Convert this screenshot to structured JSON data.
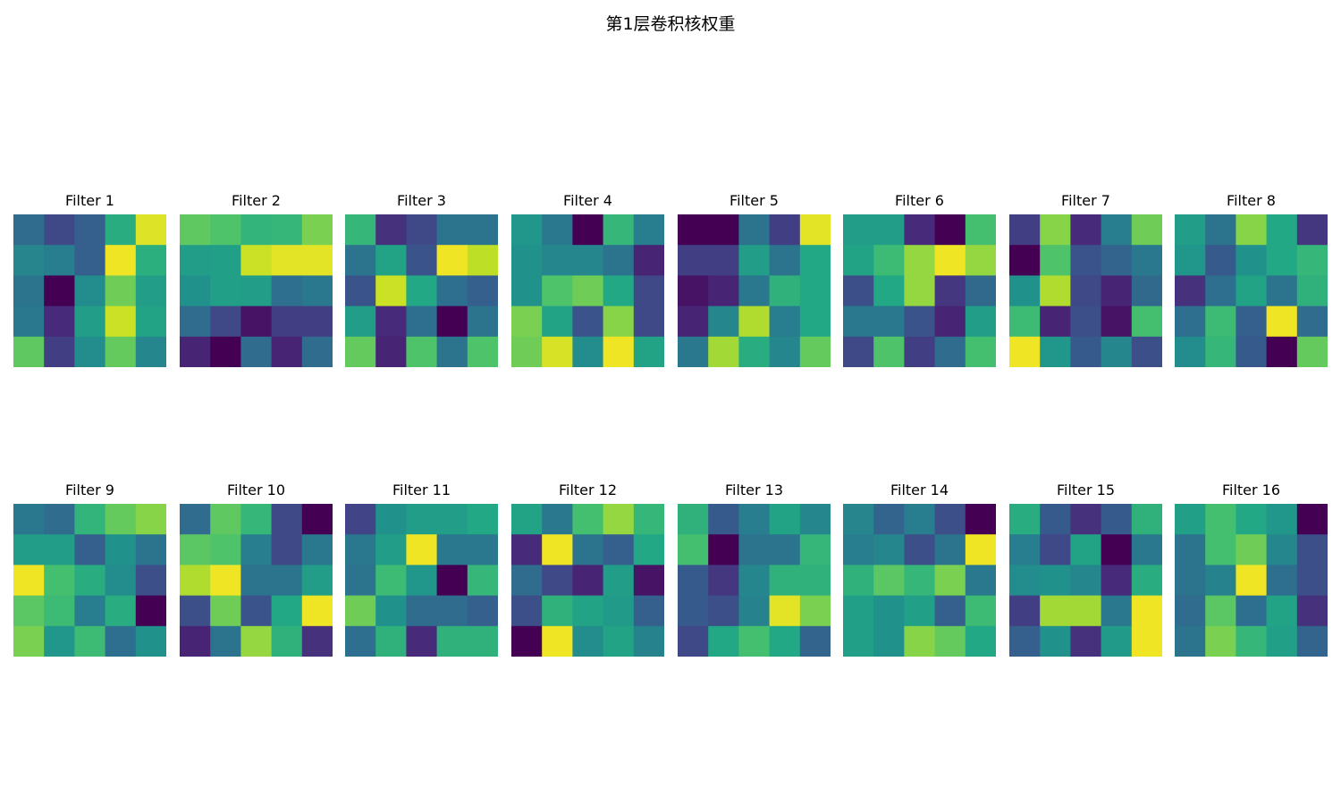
{
  "title": "第1层卷积核权重",
  "chart_data": {
    "type": "heatmap",
    "title": "第1层卷积核权重",
    "colormap": "viridis",
    "kernel_size": [
      5,
      5
    ],
    "axes_visible": false,
    "rows": 2,
    "cols": 8,
    "filters": [
      {
        "label": "Filter 1",
        "values": [
          [
            0.35,
            0.22,
            0.3,
            0.62,
            0.95
          ],
          [
            0.45,
            0.42,
            0.3,
            0.98,
            0.63
          ],
          [
            0.38,
            0.0,
            0.48,
            0.78,
            0.55
          ],
          [
            0.4,
            0.12,
            0.55,
            0.92,
            0.58
          ],
          [
            0.75,
            0.18,
            0.48,
            0.76,
            0.46
          ]
        ]
      },
      {
        "label": "Filter 2",
        "values": [
          [
            0.75,
            0.72,
            0.65,
            0.66,
            0.8
          ],
          [
            0.55,
            0.56,
            0.92,
            0.96,
            0.96
          ],
          [
            0.5,
            0.56,
            0.55,
            0.36,
            0.4
          ],
          [
            0.35,
            0.22,
            0.05,
            0.18,
            0.18
          ],
          [
            0.1,
            0.0,
            0.35,
            0.1,
            0.35
          ]
        ]
      },
      {
        "label": "Filter 3",
        "values": [
          [
            0.66,
            0.14,
            0.22,
            0.38,
            0.38
          ],
          [
            0.38,
            0.58,
            0.26,
            0.98,
            0.9
          ],
          [
            0.26,
            0.92,
            0.6,
            0.36,
            0.3
          ],
          [
            0.55,
            0.12,
            0.36,
            0.0,
            0.38
          ],
          [
            0.76,
            0.1,
            0.72,
            0.38,
            0.72
          ]
        ]
      },
      {
        "label": "Filter 4",
        "values": [
          [
            0.52,
            0.4,
            0.0,
            0.66,
            0.42
          ],
          [
            0.5,
            0.46,
            0.46,
            0.38,
            0.1
          ],
          [
            0.5,
            0.72,
            0.78,
            0.6,
            0.22
          ],
          [
            0.8,
            0.58,
            0.26,
            0.82,
            0.22
          ],
          [
            0.78,
            0.94,
            0.48,
            0.98,
            0.58
          ]
        ]
      },
      {
        "label": "Filter 5",
        "values": [
          [
            0.0,
            0.0,
            0.38,
            0.18,
            0.96
          ],
          [
            0.18,
            0.18,
            0.55,
            0.38,
            0.6
          ],
          [
            0.05,
            0.1,
            0.4,
            0.64,
            0.6
          ],
          [
            0.1,
            0.46,
            0.88,
            0.42,
            0.6
          ],
          [
            0.4,
            0.86,
            0.62,
            0.46,
            0.76
          ]
        ]
      },
      {
        "label": "Filter 6",
        "values": [
          [
            0.55,
            0.55,
            0.12,
            0.0,
            0.7
          ],
          [
            0.58,
            0.68,
            0.84,
            0.98,
            0.84
          ],
          [
            0.24,
            0.6,
            0.84,
            0.16,
            0.34
          ],
          [
            0.4,
            0.4,
            0.26,
            0.1,
            0.55
          ],
          [
            0.22,
            0.72,
            0.18,
            0.35,
            0.7
          ]
        ]
      },
      {
        "label": "Filter 7",
        "values": [
          [
            0.18,
            0.82,
            0.12,
            0.42,
            0.78
          ],
          [
            0.0,
            0.72,
            0.26,
            0.32,
            0.4
          ],
          [
            0.5,
            0.88,
            0.22,
            0.1,
            0.34
          ],
          [
            0.68,
            0.1,
            0.24,
            0.05,
            0.7
          ],
          [
            0.98,
            0.52,
            0.28,
            0.46,
            0.24
          ]
        ]
      },
      {
        "label": "Filter 8",
        "values": [
          [
            0.55,
            0.38,
            0.82,
            0.6,
            0.16
          ],
          [
            0.52,
            0.28,
            0.5,
            0.6,
            0.66
          ],
          [
            0.14,
            0.36,
            0.58,
            0.38,
            0.64
          ],
          [
            0.36,
            0.68,
            0.3,
            0.98,
            0.35
          ],
          [
            0.48,
            0.66,
            0.28,
            0.0,
            0.76
          ]
        ]
      },
      {
        "label": "Filter 9",
        "values": [
          [
            0.4,
            0.35,
            0.65,
            0.76,
            0.82
          ],
          [
            0.55,
            0.55,
            0.3,
            0.5,
            0.38
          ],
          [
            0.98,
            0.7,
            0.62,
            0.48,
            0.24
          ],
          [
            0.74,
            0.68,
            0.42,
            0.62,
            0.0
          ],
          [
            0.8,
            0.52,
            0.68,
            0.36,
            0.5
          ]
        ]
      },
      {
        "label": "Filter 10",
        "values": [
          [
            0.35,
            0.75,
            0.66,
            0.22,
            0.0
          ],
          [
            0.74,
            0.72,
            0.42,
            0.22,
            0.4
          ],
          [
            0.88,
            0.98,
            0.38,
            0.38,
            0.55
          ],
          [
            0.24,
            0.78,
            0.26,
            0.6,
            0.98
          ],
          [
            0.1,
            0.38,
            0.84,
            0.64,
            0.14
          ]
        ]
      },
      {
        "label": "Filter 11",
        "values": [
          [
            0.2,
            0.5,
            0.55,
            0.55,
            0.6
          ],
          [
            0.4,
            0.55,
            0.98,
            0.4,
            0.4
          ],
          [
            0.38,
            0.68,
            0.52,
            0.0,
            0.66
          ],
          [
            0.78,
            0.5,
            0.35,
            0.35,
            0.3
          ],
          [
            0.36,
            0.64,
            0.12,
            0.64,
            0.64
          ]
        ]
      },
      {
        "label": "Filter 12",
        "values": [
          [
            0.58,
            0.4,
            0.7,
            0.84,
            0.66
          ],
          [
            0.12,
            0.98,
            0.38,
            0.3,
            0.6
          ],
          [
            0.35,
            0.22,
            0.1,
            0.55,
            0.05
          ],
          [
            0.24,
            0.64,
            0.58,
            0.54,
            0.3
          ],
          [
            0.0,
            0.98,
            0.48,
            0.58,
            0.44
          ]
        ]
      },
      {
        "label": "Filter 13",
        "values": [
          [
            0.64,
            0.28,
            0.42,
            0.58,
            0.46
          ],
          [
            0.7,
            0.0,
            0.38,
            0.38,
            0.66
          ],
          [
            0.28,
            0.16,
            0.46,
            0.64,
            0.64
          ],
          [
            0.28,
            0.24,
            0.44,
            0.96,
            0.8
          ],
          [
            0.22,
            0.6,
            0.7,
            0.6,
            0.32
          ]
        ]
      },
      {
        "label": "Filter 14",
        "values": [
          [
            0.45,
            0.32,
            0.42,
            0.24,
            0.0
          ],
          [
            0.42,
            0.46,
            0.24,
            0.38,
            0.98
          ],
          [
            0.64,
            0.74,
            0.66,
            0.8,
            0.4
          ],
          [
            0.56,
            0.5,
            0.56,
            0.3,
            0.68
          ],
          [
            0.56,
            0.5,
            0.82,
            0.76,
            0.6
          ]
        ]
      },
      {
        "label": "Filter 15",
        "values": [
          [
            0.62,
            0.28,
            0.14,
            0.28,
            0.64
          ],
          [
            0.42,
            0.22,
            0.58,
            0.0,
            0.4
          ],
          [
            0.48,
            0.5,
            0.46,
            0.12,
            0.62
          ],
          [
            0.18,
            0.86,
            0.86,
            0.4,
            0.98
          ],
          [
            0.3,
            0.5,
            0.14,
            0.54,
            0.98
          ]
        ]
      },
      {
        "label": "Filter 16",
        "values": [
          [
            0.56,
            0.7,
            0.6,
            0.52,
            0.0
          ],
          [
            0.38,
            0.7,
            0.78,
            0.46,
            0.24
          ],
          [
            0.38,
            0.44,
            0.98,
            0.36,
            0.24
          ],
          [
            0.35,
            0.74,
            0.36,
            0.58,
            0.14
          ],
          [
            0.38,
            0.8,
            0.66,
            0.56,
            0.32
          ]
        ]
      }
    ]
  }
}
